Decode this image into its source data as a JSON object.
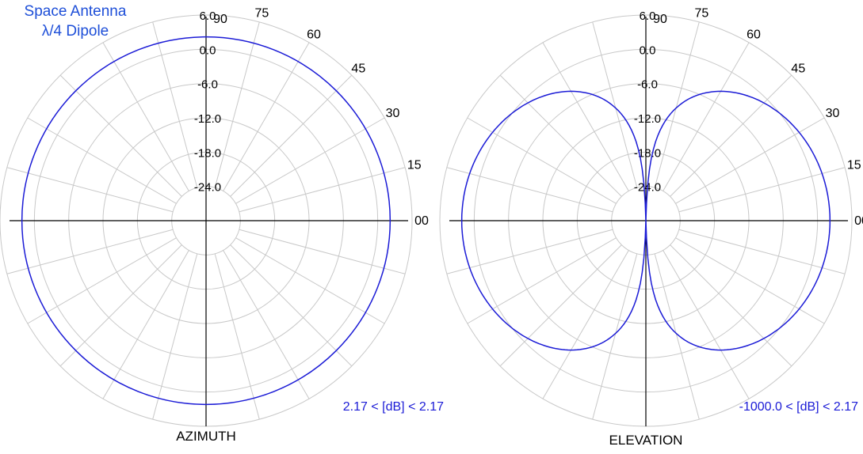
{
  "figure": {
    "title_line1": "Space Antenna",
    "title_line2": "λ/4 Dipole",
    "colors": {
      "title": "#1e4fd8",
      "pattern": "#1b1bd6",
      "grid": "#c8c8c8",
      "axes": "#000000",
      "text": "#000000"
    }
  },
  "chart_data": [
    {
      "type": "polar",
      "name": "AZIMUTH",
      "caption": "AZIMUTH",
      "range_label": "2.17 < [dB] < 2.17",
      "radial_axis": {
        "unit": "dB",
        "ticks": [
          6.0,
          0.0,
          -6.0,
          -12.0,
          -18.0,
          -24.0
        ],
        "tick_labels": [
          "6.0",
          "0.0",
          "-6.0",
          "-12.0",
          "-18.0",
          "-24.0"
        ],
        "range": [
          -30,
          6
        ]
      },
      "angular_axis": {
        "tick_labels": [
          "90",
          "75",
          "60",
          "45",
          "30",
          "15",
          "00"
        ],
        "tick_angles_deg": [
          90,
          75,
          60,
          45,
          30,
          15,
          0
        ],
        "spoke_step_deg": 15
      },
      "grid": true,
      "series": [
        {
          "shape": "circle",
          "gain_db_by_angle": [
            [
              0,
              2.17
            ],
            [
              90,
              2.17
            ],
            [
              180,
              2.17
            ],
            [
              270,
              2.17
            ]
          ],
          "max_gain_db": 2.17,
          "min_gain_db": 2.17
        }
      ]
    },
    {
      "type": "polar",
      "name": "ELEVATION",
      "caption": "ELEVATION",
      "range_label": "-1000.0 < [dB] < 2.17",
      "radial_axis": {
        "unit": "dB",
        "ticks": [
          6.0,
          0.0,
          -6.0,
          -12.0,
          -18.0,
          -24.0
        ],
        "tick_labels": [
          "6.0",
          "0.0",
          "-6.0",
          "-12.0",
          "-18.0",
          "-24.0"
        ],
        "range": [
          -30,
          6
        ]
      },
      "angular_axis": {
        "tick_labels": [
          "90",
          "75",
          "60",
          "45",
          "30",
          "15",
          "00"
        ],
        "tick_angles_deg": [
          90,
          75,
          60,
          45,
          30,
          15,
          0
        ],
        "spoke_step_deg": 15
      },
      "grid": true,
      "series": [
        {
          "shape": "figure-eight",
          "gain_db_by_angle": [
            [
              0,
              2.17
            ],
            [
              30,
              1.0
            ],
            [
              60,
              -3.0
            ],
            [
              75,
              -9.0
            ],
            [
              90,
              -1000.0
            ]
          ],
          "max_gain_db": 2.17,
          "min_gain_db": -1000.0
        }
      ]
    }
  ]
}
